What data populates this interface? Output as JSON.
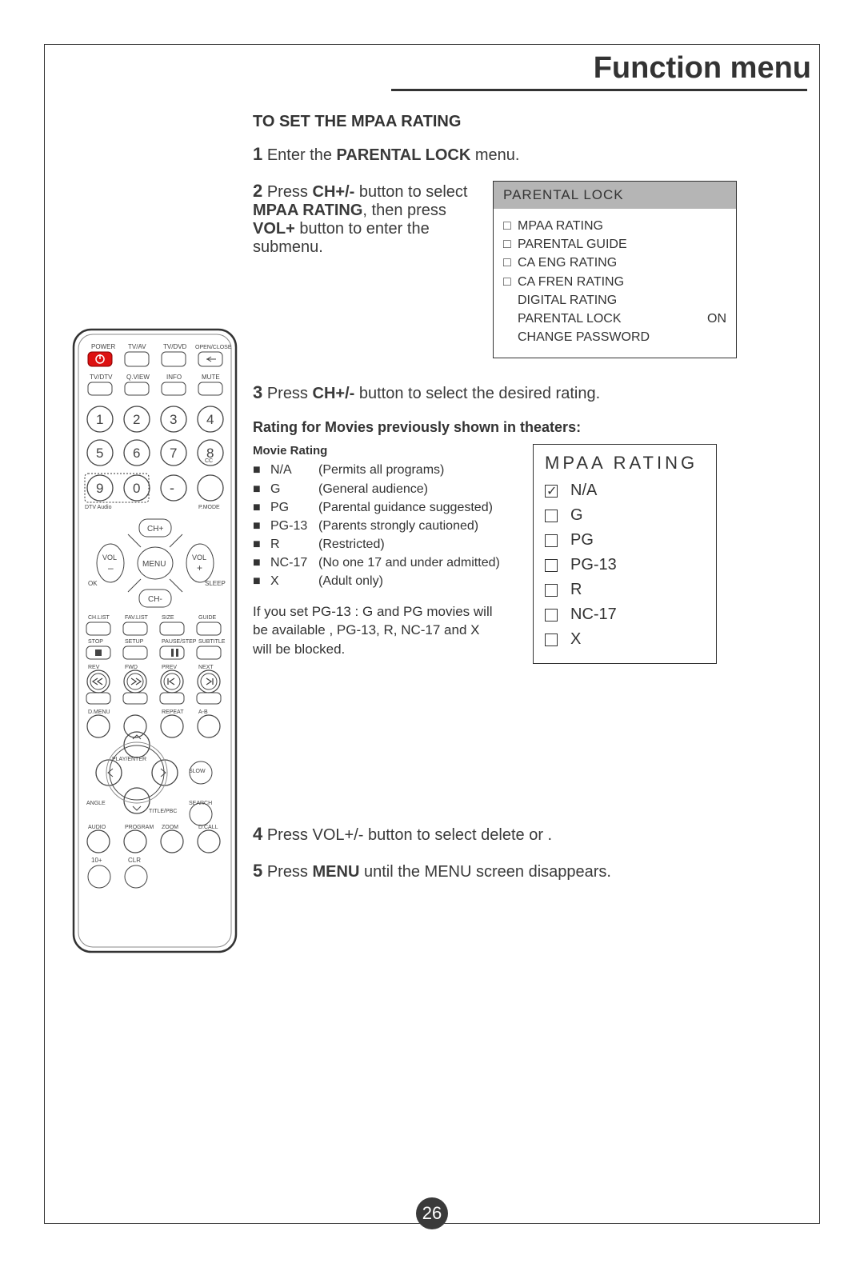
{
  "header": {
    "title": "Function menu",
    "page_number": "26"
  },
  "section": {
    "title": "TO SET THE MPAA RATING"
  },
  "steps": {
    "s1": {
      "num": "1",
      "pre": "Enter the ",
      "bold": "PARENTAL LOCK",
      "post": "  menu."
    },
    "s2": {
      "num": "2",
      "t1": "Press ",
      "b1": "CH+/- ",
      "t2": "button to select ",
      "b2": "MPAA RATING",
      "t3": ", then press ",
      "b3": "VOL+ ",
      "t4": "button to enter the submenu."
    },
    "s3": {
      "num": "3",
      "t1": "Press ",
      "b1": "CH+/- ",
      "t2": "button to select the desired rating."
    },
    "s4": {
      "num": "4",
      "text": "Press VOL+/- button to select delete or   ."
    },
    "s5": {
      "num": "5",
      "t1": "Press ",
      "b1": "MENU",
      "t2": " until the MENU screen disappears."
    }
  },
  "osd_parental": {
    "title": "PARENTAL LOCK",
    "items": [
      {
        "check": "□",
        "label": "MPAA RATING",
        "right": ""
      },
      {
        "check": "□",
        "label": "PARENTAL GUIDE",
        "right": ""
      },
      {
        "check": "□",
        "label": "CA  ENG  RATING",
        "right": ""
      },
      {
        "check": "□",
        "label": "CA  FREN  RATING",
        "right": ""
      },
      {
        "check": "",
        "label": "DIGITAL RATING",
        "right": ""
      },
      {
        "check": "",
        "label": "PARENTAL LOCK",
        "right": "ON"
      },
      {
        "check": "",
        "label": "CHANGE PASSWORD",
        "right": ""
      }
    ]
  },
  "rating_subhead": "Rating for Movies previously shown in theaters:",
  "movie_rating": {
    "title": "Movie Rating",
    "rows": [
      {
        "code": "N/A",
        "desc": "(Permits all programs)"
      },
      {
        "code": "G",
        "desc": "(General audience)"
      },
      {
        "code": "PG",
        "desc": "(Parental guidance suggested)"
      },
      {
        "code": "PG-13",
        "desc": "(Parents strongly cautioned)"
      },
      {
        "code": "R",
        "desc": "(Restricted)"
      },
      {
        "code": "NC-17",
        "desc": "(No one 17 and under admitted)"
      },
      {
        "code": "X",
        "desc": "(Adult only)"
      }
    ],
    "note": "If you set PG-13 : G and PG movies will be available , PG-13, R, NC-17 and X will be blocked."
  },
  "osd_rating": {
    "title": "MPAA   RATING",
    "items": [
      {
        "label": "N/A",
        "checked": true
      },
      {
        "label": "G",
        "checked": false
      },
      {
        "label": "PG",
        "checked": false
      },
      {
        "label": "PG-13",
        "checked": false
      },
      {
        "label": "R",
        "checked": false
      },
      {
        "label": "NC-17",
        "checked": false
      },
      {
        "label": "X",
        "checked": false
      }
    ]
  },
  "remote": {
    "row1_labels": [
      "POWER",
      "TV/AV",
      "TV/DVD",
      "OPEN/CLOSE"
    ],
    "row2_labels": [
      "TV/DTV",
      "Q.VIEW",
      "INFO",
      "MUTE"
    ],
    "digits": [
      "1",
      "2",
      "3",
      "4",
      "5",
      "6",
      "7",
      "8",
      "9",
      "0"
    ],
    "sub_labels": {
      "dtv_audio": "DTV Audio",
      "cc": "CC",
      "pmode": "P.MODE",
      "dash": "-"
    },
    "nav": {
      "ch_up": "CH+",
      "ch_down": "CH-",
      "vol_minus": "VOL\n–",
      "vol_plus": "VOL\n+",
      "menu": "MENU",
      "ok": "OK",
      "sleep": "SLEEP"
    },
    "row5_labels": [
      "CH.LIST",
      "FAV.LIST",
      "SIZE",
      "GUIDE"
    ],
    "row6_labels": [
      "STOP",
      "SETUP",
      "PAUSE/STEP",
      "SUBTITLE"
    ],
    "row7_labels": [
      "REV",
      "FWD",
      "PREV",
      "NEXT"
    ],
    "row8_labels": [
      "D.MENU",
      "",
      "REPEAT",
      "A-B"
    ],
    "play_labels": {
      "play": "PLAY/ENTER",
      "slow": "SLOW",
      "angle": "ANGLE",
      "title": "TITLE/PBC",
      "search": "SEARCH"
    },
    "row9_labels": [
      "AUDIO",
      "PROGRAM",
      "ZOOM",
      "D.CALL"
    ],
    "row10_labels": [
      "10+",
      "CLR"
    ]
  }
}
